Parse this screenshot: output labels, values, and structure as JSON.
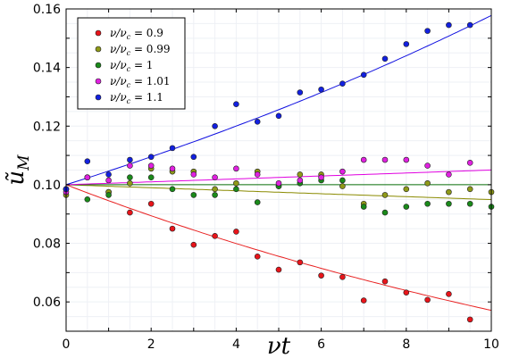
{
  "chart_data": {
    "type": "scatter",
    "xlabel": "νt",
    "ylabel": "ũ",
    "ylabel_sub": "M",
    "xlim": [
      0,
      10
    ],
    "ylim": [
      0.05,
      0.16
    ],
    "xticks": [
      0,
      2,
      4,
      6,
      8,
      10
    ],
    "yticks": [
      0.06,
      0.08,
      0.1,
      0.12,
      0.14,
      0.16
    ],
    "ytick_labels": [
      "0.06",
      "0.08",
      "0.10",
      "0.12",
      "0.14",
      "0.16"
    ],
    "grid": true,
    "legend_placement": "top-left",
    "x": [
      0,
      0.5,
      1,
      1.5,
      2,
      2.5,
      3,
      3.5,
      4,
      4.5,
      5,
      5.5,
      6,
      6.5,
      7,
      7.5,
      8,
      8.5,
      9,
      9.5,
      10
    ],
    "series": [
      {
        "name": "ν/ν_c = 0.9",
        "label_lhs": "ν/ν",
        "label_sub": "c",
        "label_rhs": " = 0.9",
        "color": "#e8141a",
        "line_color": "#e82020",
        "values": [
          0.0985,
          0.1025,
          0.0975,
          0.0905,
          0.0935,
          0.085,
          0.0795,
          0.0825,
          0.084,
          0.0755,
          0.071,
          0.0735,
          0.069,
          0.0685,
          0.0605,
          0.067,
          0.0632,
          0.0607,
          0.0627,
          0.054,
          null
        ],
        "fit": {
          "start": 0.1,
          "rate": 0.056
        }
      },
      {
        "name": "ν/ν_c = 0.99",
        "label_lhs": "ν/ν",
        "label_sub": "c",
        "label_rhs": " = 0.99",
        "color": "#8f9a18",
        "line_color": "#8a8a00",
        "values": [
          0.0965,
          0.1025,
          0.0975,
          0.1005,
          0.1055,
          0.1045,
          0.1045,
          0.0985,
          0.1005,
          0.1045,
          0.0995,
          0.1035,
          0.1035,
          0.0995,
          0.0935,
          0.0965,
          0.0985,
          0.1005,
          0.0975,
          0.0985,
          0.0975
        ],
        "fit": {
          "start": 0.1,
          "rate": 0.0052
        }
      },
      {
        "name": "ν/ν_c = 1",
        "label_lhs": "ν/ν",
        "label_sub": "c",
        "label_rhs": " = 1",
        "color": "#1a8a1a",
        "line_color": "#0a700a",
        "values": [
          0.0985,
          0.095,
          0.0965,
          0.1025,
          0.1025,
          0.0985,
          0.0965,
          0.0965,
          0.0985,
          0.094,
          0.0995,
          0.1005,
          0.1015,
          0.1015,
          0.0925,
          0.0905,
          0.0925,
          0.0935,
          0.0935,
          0.0935,
          0.0925
        ],
        "fit": {
          "start": 0.1,
          "rate": 0.0
        }
      },
      {
        "name": "ν/ν_c = 1.01",
        "label_lhs": "ν/ν",
        "label_sub": "c",
        "label_rhs": " = 1.01",
        "color": "#e020e0",
        "line_color": "#e000e0",
        "values": [
          0.0975,
          0.1025,
          0.1015,
          0.1065,
          0.1065,
          0.1055,
          0.1035,
          0.1025,
          0.1055,
          0.1035,
          0.1005,
          0.1015,
          0.1025,
          0.1045,
          0.1085,
          0.1085,
          0.1085,
          0.1065,
          0.1035,
          0.1075,
          null
        ],
        "fit": {
          "start": 0.1,
          "rate": 0.0049
        }
      },
      {
        "name": "ν/ν_c = 1.1",
        "label_lhs": "ν/ν",
        "label_sub": "c",
        "label_rhs": " = 1.1",
        "color": "#1220e0",
        "line_color": "#1010e0",
        "values": [
          0.0985,
          0.108,
          0.1035,
          0.1085,
          0.1095,
          0.1125,
          0.1095,
          0.12,
          0.1275,
          0.1215,
          0.1235,
          0.1315,
          0.1325,
          0.1345,
          0.1375,
          0.143,
          0.148,
          0.1525,
          0.1545,
          0.1545,
          null
        ],
        "fit": {
          "start": 0.1,
          "rate": 0.0456
        }
      }
    ]
  }
}
